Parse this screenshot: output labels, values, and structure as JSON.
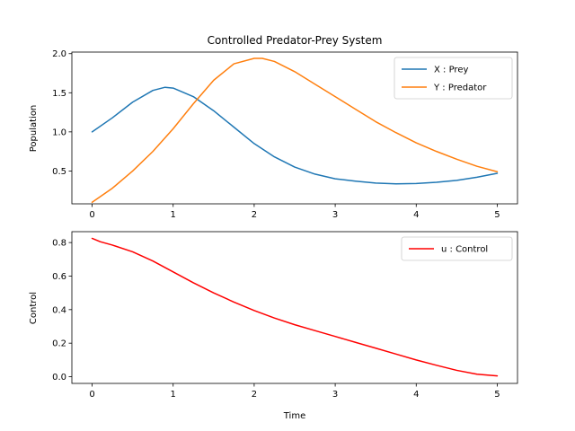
{
  "chart_data": [
    {
      "type": "line",
      "title": "Controlled Predator-Prey System",
      "xlabel": "",
      "ylabel": "Population",
      "xlim": [
        -0.25,
        5.25
      ],
      "ylim": [
        0.08,
        2.02
      ],
      "xticks": [
        0,
        1,
        2,
        3,
        4,
        5
      ],
      "yticks": [
        0.5,
        1.0,
        1.5,
        2.0
      ],
      "ytick_labels": [
        "0.5",
        "1.0",
        "1.5",
        "2.0"
      ],
      "legend_position": "top-right",
      "series": [
        {
          "name": "X : Prey",
          "color": "#1f77b4",
          "x": [
            0,
            0.25,
            0.5,
            0.75,
            0.9,
            1.0,
            1.25,
            1.5,
            1.75,
            2.0,
            2.25,
            2.5,
            2.75,
            3.0,
            3.25,
            3.5,
            3.75,
            4.0,
            4.25,
            4.5,
            4.75,
            5.0
          ],
          "y": [
            1.0,
            1.18,
            1.38,
            1.53,
            1.57,
            1.56,
            1.45,
            1.27,
            1.06,
            0.85,
            0.68,
            0.55,
            0.46,
            0.4,
            0.37,
            0.345,
            0.335,
            0.34,
            0.355,
            0.38,
            0.42,
            0.47
          ]
        },
        {
          "name": "Y : Predator",
          "color": "#ff7f0e",
          "x": [
            0,
            0.25,
            0.5,
            0.75,
            1.0,
            1.25,
            1.5,
            1.75,
            2.0,
            2.1,
            2.25,
            2.5,
            2.75,
            3.0,
            3.25,
            3.5,
            3.75,
            4.0,
            4.25,
            4.5,
            4.75,
            5.0
          ],
          "y": [
            0.1,
            0.28,
            0.5,
            0.75,
            1.04,
            1.36,
            1.66,
            1.87,
            1.94,
            1.94,
            1.9,
            1.77,
            1.61,
            1.45,
            1.29,
            1.13,
            0.99,
            0.86,
            0.75,
            0.65,
            0.56,
            0.49
          ]
        }
      ]
    },
    {
      "type": "line",
      "title": "",
      "xlabel": "Time",
      "ylabel": "Control",
      "xlim": [
        -0.25,
        5.25
      ],
      "ylim": [
        -0.04,
        0.865
      ],
      "xticks": [
        0,
        1,
        2,
        3,
        4,
        5
      ],
      "yticks": [
        0.0,
        0.2,
        0.4,
        0.6,
        0.8
      ],
      "ytick_labels": [
        "0.0",
        "0.2",
        "0.4",
        "0.6",
        "0.8"
      ],
      "legend_position": "top-right",
      "series": [
        {
          "name": "u : Control",
          "color": "#ff0000",
          "x": [
            0,
            0.1,
            0.25,
            0.5,
            0.75,
            1.0,
            1.25,
            1.5,
            1.75,
            2.0,
            2.25,
            2.5,
            2.75,
            3.0,
            3.25,
            3.5,
            3.75,
            4.0,
            4.25,
            4.5,
            4.75,
            5.0
          ],
          "y": [
            0.825,
            0.805,
            0.785,
            0.745,
            0.69,
            0.625,
            0.56,
            0.5,
            0.445,
            0.395,
            0.35,
            0.31,
            0.275,
            0.24,
            0.205,
            0.17,
            0.135,
            0.1,
            0.068,
            0.038,
            0.015,
            0.005
          ]
        }
      ]
    }
  ]
}
